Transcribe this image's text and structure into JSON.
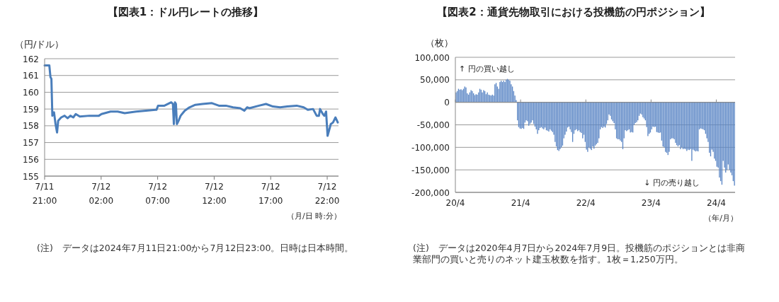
{
  "chart_data": [
    {
      "type": "line",
      "title": "【図表1：ドル円レートの推移】",
      "ylabel": "（円/ドル）",
      "xlabel": "（月/日 時:分）",
      "color": "#4a7ebb",
      "grid": "y",
      "xlim": [
        "2024-07-11T21:00",
        "2024-07-12T23:00"
      ],
      "ylim": [
        155,
        162
      ],
      "xticks": [
        {
          "value": "2024-07-11T21:00",
          "label": "7/11 21:00"
        },
        {
          "value": "2024-07-12T02:00",
          "label": "7/12 02:00"
        },
        {
          "value": "2024-07-12T07:00",
          "label": "7/12 07:00"
        },
        {
          "value": "2024-07-12T12:00",
          "label": "7/12 12:00"
        },
        {
          "value": "2024-07-12T17:00",
          "label": "7/12 17:00"
        },
        {
          "value": "2024-07-12T22:00",
          "label": "7/12 22:00"
        }
      ],
      "yticks": [
        155,
        156,
        157,
        158,
        159,
        160,
        161,
        162
      ],
      "x": [
        "2024-07-11T21:00",
        "2024-07-11T21:25",
        "2024-07-11T21:31",
        "2024-07-11T21:36",
        "2024-07-11T21:41",
        "2024-07-11T21:50",
        "2024-07-11T21:58",
        "2024-07-11T22:06",
        "2024-07-11T22:12",
        "2024-07-11T22:28",
        "2024-07-11T22:46",
        "2024-07-11T23:02",
        "2024-07-11T23:17",
        "2024-07-11T23:32",
        "2024-07-11T23:45",
        "2024-07-12T00:07",
        "2024-07-12T00:58",
        "2024-07-12T01:48",
        "2024-07-12T02:02",
        "2024-07-12T02:50",
        "2024-07-12T03:28",
        "2024-07-12T04:05",
        "2024-07-12T05:06",
        "2024-07-12T05:58",
        "2024-07-12T06:48",
        "2024-07-12T06:54",
        "2024-07-12T07:02",
        "2024-07-12T07:36",
        "2024-07-12T08:12",
        "2024-07-12T08:21",
        "2024-07-12T08:26",
        "2024-07-12T08:32",
        "2024-07-12T08:37",
        "2024-07-12T08:42",
        "2024-07-12T08:53",
        "2024-07-12T09:02",
        "2024-07-12T09:24",
        "2024-07-12T09:49",
        "2024-07-12T10:20",
        "2024-07-12T10:58",
        "2024-07-12T11:48",
        "2024-07-12T12:25",
        "2024-07-12T13:02",
        "2024-07-12T13:40",
        "2024-07-12T14:18",
        "2024-07-12T14:40",
        "2024-07-12T14:55",
        "2024-07-12T15:07",
        "2024-07-12T15:58",
        "2024-07-12T16:35",
        "2024-07-12T17:12",
        "2024-07-12T17:50",
        "2024-07-12T18:28",
        "2024-07-12T19:18",
        "2024-07-12T19:55",
        "2024-07-12T20:17",
        "2024-07-12T20:45",
        "2024-07-12T21:04",
        "2024-07-12T21:16",
        "2024-07-12T21:22",
        "2024-07-12T21:37",
        "2024-07-12T21:45",
        "2024-07-12T21:54",
        "2024-07-12T22:02",
        "2024-07-12T22:19",
        "2024-07-12T22:31",
        "2024-07-12T22:44",
        "2024-07-12T22:56"
      ],
      "values": [
        161.6,
        161.6,
        160.9,
        160.8,
        158.6,
        158.8,
        158.1,
        157.6,
        158.3,
        158.5,
        158.6,
        158.45,
        158.6,
        158.5,
        158.7,
        158.55,
        158.6,
        158.6,
        158.7,
        158.85,
        158.85,
        158.75,
        158.85,
        158.9,
        158.95,
        158.95,
        159.2,
        159.2,
        159.4,
        159.3,
        158.1,
        159.4,
        159.3,
        158.1,
        158.35,
        158.6,
        158.9,
        159.1,
        159.25,
        159.3,
        159.35,
        159.2,
        159.2,
        159.1,
        159.05,
        158.9,
        159.1,
        159.05,
        159.2,
        159.3,
        159.15,
        159.1,
        159.15,
        159.2,
        159.1,
        158.95,
        159.0,
        158.6,
        158.6,
        159.0,
        158.7,
        158.6,
        158.85,
        157.4,
        158.1,
        158.2,
        158.5,
        158.2
      ],
      "annotations": [
        "(注)　データは2024年7月11日21:00から7月12日23:00。日時は日本時間。"
      ]
    },
    {
      "type": "bar",
      "title": "【図表2：通貨先物取引における投機筋の円ポジション】",
      "ylabel": "（枚）",
      "xlabel": "（年/月）",
      "color": "#5b86c5",
      "grid": "y",
      "ylim": [
        -200000,
        100000
      ],
      "yticks": [
        {
          "value": -200000,
          "label": "-200,000"
        },
        {
          "value": -150000,
          "label": "-150,000"
        },
        {
          "value": -100000,
          "label": "-100,000"
        },
        {
          "value": -50000,
          "label": "-50,000"
        },
        0,
        {
          "value": 50000,
          "label": "50,000"
        },
        {
          "value": 100000,
          "label": "100,000"
        }
      ],
      "categories": [
        "20/4",
        null,
        null,
        null,
        null,
        null,
        null,
        null,
        null,
        null,
        null,
        null,
        null,
        null,
        null,
        null,
        null,
        null,
        null,
        null,
        null,
        null,
        null,
        null,
        null,
        null,
        null,
        null,
        null,
        null,
        null,
        null,
        null,
        null,
        null,
        null,
        null,
        null,
        null,
        null,
        null,
        null,
        null,
        null,
        null,
        null,
        null,
        null,
        null,
        null,
        null,
        null,
        "21/4",
        null,
        null,
        null,
        null,
        null,
        null,
        null,
        null,
        null,
        null,
        null,
        null,
        null,
        null,
        null,
        null,
        null,
        null,
        null,
        null,
        null,
        null,
        null,
        null,
        null,
        null,
        null,
        null,
        null,
        null,
        null,
        null,
        null,
        null,
        null,
        null,
        null,
        null,
        null,
        null,
        null,
        null,
        null,
        null,
        null,
        null,
        null,
        null,
        null,
        null,
        null,
        "22/4",
        null,
        null,
        null,
        null,
        null,
        null,
        null,
        null,
        null,
        null,
        null,
        null,
        null,
        null,
        null,
        null,
        null,
        null,
        null,
        null,
        null,
        null,
        null,
        null,
        null,
        null,
        null,
        null,
        null,
        null,
        null,
        null,
        null,
        null,
        null,
        null,
        null,
        null,
        null,
        null,
        null,
        null,
        null,
        null,
        null,
        null,
        null,
        null,
        null,
        null,
        null,
        "23/4",
        null,
        null,
        null,
        null,
        null,
        null,
        null,
        null,
        null,
        null,
        null,
        null,
        null,
        null,
        null,
        null,
        null,
        null,
        null,
        null,
        null,
        null,
        null,
        null,
        null,
        null,
        null,
        null,
        null,
        null,
        null,
        null,
        null,
        null,
        null,
        null,
        null,
        null,
        null,
        null,
        null,
        null,
        null,
        null,
        null,
        null,
        null,
        null,
        null,
        null,
        null,
        "24/4",
        null,
        null,
        null,
        null,
        null,
        null,
        null,
        null,
        null,
        null,
        null,
        null,
        null,
        null
      ],
      "values": [
        22000,
        25000,
        30000,
        28000,
        29000,
        27000,
        30000,
        35000,
        33000,
        20000,
        17000,
        22000,
        27000,
        25000,
        20000,
        16000,
        18000,
        17000,
        22000,
        30000,
        28000,
        22000,
        27000,
        25000,
        18000,
        22000,
        17000,
        16000,
        15000,
        17000,
        15000,
        40000,
        43000,
        35000,
        30000,
        45000,
        48000,
        45000,
        48000,
        45000,
        50000,
        52000,
        50000,
        48000,
        40000,
        35000,
        25000,
        15000,
        5000,
        -40000,
        -55000,
        -58000,
        -59000,
        -57000,
        -59000,
        -45000,
        -40000,
        -42000,
        -52000,
        -48000,
        -45000,
        -40000,
        -48000,
        -54000,
        -60000,
        -70000,
        -62000,
        -57000,
        -55000,
        -58000,
        -60000,
        -56000,
        -62000,
        -63000,
        -65000,
        -60000,
        -63000,
        -66000,
        -72000,
        -88000,
        -98000,
        -106000,
        -108000,
        -104000,
        -100000,
        -96000,
        -80000,
        -72000,
        -65000,
        -56000,
        -54000,
        -60000,
        -66000,
        -88000,
        -70000,
        -62000,
        -60000,
        -64000,
        -62000,
        -66000,
        -68000,
        -80000,
        -72000,
        -88000,
        -105000,
        -110000,
        -100000,
        -103000,
        -106000,
        -98000,
        -103000,
        -96000,
        -93000,
        -90000,
        -80000,
        -60000,
        -55000,
        -57000,
        -54000,
        -56000,
        -48000,
        -40000,
        -27000,
        -30000,
        -38000,
        -42000,
        -46000,
        -60000,
        -80000,
        -82000,
        -82000,
        -85000,
        -88000,
        -104000,
        -80000,
        -62000,
        -64000,
        -62000,
        -60000,
        -67000,
        -66000,
        -67000,
        -50000,
        -46000,
        -44000,
        -40000,
        -30000,
        -25000,
        -27000,
        -33000,
        -36000,
        -40000,
        -55000,
        -75000,
        -70000,
        -67000,
        -60000,
        -54000,
        -55000,
        -54000,
        -66000,
        -67000,
        -68000,
        -67000,
        -85000,
        -98000,
        -100000,
        -110000,
        -112000,
        -117000,
        -110000,
        -82000,
        -80000,
        -80000,
        -82000,
        -90000,
        -95000,
        -98000,
        -95000,
        -104000,
        -100000,
        -104000,
        -103000,
        -104000,
        -108000,
        -105000,
        -106000,
        -104000,
        -130000,
        -105000,
        -107000,
        -109000,
        -108000,
        -109000,
        -60000,
        -58000,
        -59000,
        -60000,
        -62000,
        -70000,
        -80000,
        -88000,
        -112000,
        -120000,
        -105000,
        -110000,
        -125000,
        -130000,
        -143000,
        -145000,
        -167000,
        -175000,
        -183000,
        -130000,
        -145000,
        -156000,
        -150000,
        -138000,
        -150000,
        -156000,
        -162000,
        -175000,
        -185000
      ],
      "annotations": [
        "↑ 円の買い越し",
        "↓ 円の売り越し",
        "(注)　データは2020年4月7日から2024年7月9日。投機筋のポジションとは非商業部門の買いと売りのネット建玉枚数を指す。1枚＝1,250万円。"
      ]
    }
  ]
}
